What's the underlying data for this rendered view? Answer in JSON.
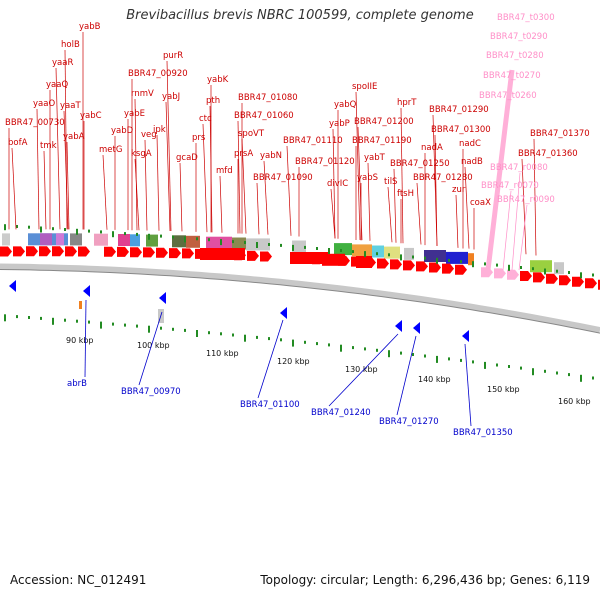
{
  "title": "Brevibacillus brevis NBRC 100599, complete genome",
  "footer": {
    "accession": "Accession: NC_012491",
    "summary": "Topology: circular; Length: 6,296,436 bp; Genes: 6,119"
  },
  "colors": {
    "forward_gene": "#ff0000",
    "label_forward": "#cc0000",
    "label_reverse": "#0000cc",
    "label_rna": "#ff8fc8",
    "reverse_gene": "#0000ff",
    "backbone": "#999999",
    "tick_green": "#228b22"
  },
  "forward_labels": [
    "yabB",
    "holB",
    "yaaR",
    "yaaQ",
    "yaaO",
    "yaaT",
    "BBR47_00730",
    "tmk",
    "bofA",
    "yabC",
    "yabA",
    "purR",
    "BBR47_00920",
    "rnmV",
    "yabJ",
    "yabE",
    "ipk",
    "metG",
    "yabD",
    "veg",
    "ksgA",
    "yabK",
    "pth",
    "ctc",
    "prs",
    "gcaD",
    "spoVT",
    "prsA",
    "mfd",
    "yabN",
    "BBR47_01080",
    "BBR47_01060",
    "BBR47_01110",
    "BBR47_01120",
    "BBR47_01090",
    "spoIIE",
    "yabQ",
    "yabP",
    "divIC",
    "yabS",
    "yabT",
    "tilS",
    "ftsH",
    "hprT",
    "BBR47_01200",
    "BBR47_01190",
    "BBR47_01250",
    "BBR47_01290",
    "nadA",
    "BBR47_01300",
    "BBR47_01280",
    "nadC",
    "zur",
    "nadB",
    "coaX",
    "BBR47_01370",
    "BBR47_01360"
  ],
  "rna_labels": [
    "BBR47_t0300",
    "BBR47_t0290",
    "BBR47_t0280",
    "BBR47_t0270",
    "BBR47_t0260",
    "BBR47_r0080",
    "BBR47_r0070",
    "BBR47_r0090"
  ],
  "reverse_labels": [
    "abrB",
    "BBR47_00970",
    "BBR47_01100",
    "BBR47_01240",
    "BBR47_01270",
    "BBR47_01350"
  ],
  "scale_labels": [
    "90 kbp",
    "100 kbp",
    "110 kbp",
    "120 kbp",
    "130 kbp",
    "140 kbp",
    "150 kbp",
    "160 kbp"
  ]
}
